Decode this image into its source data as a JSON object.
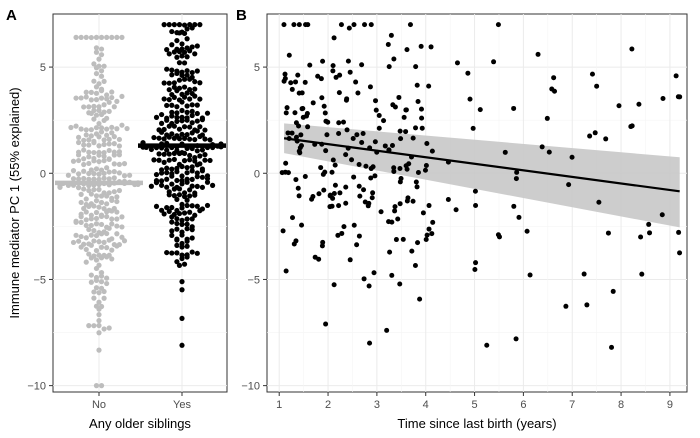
{
  "chart_data": [
    {
      "panel_label": "A",
      "type": "scatter",
      "subtype": "beeswarm",
      "ylabel": "Immune mediator PC 1 (55% explained)",
      "xlabel": "Any older siblings",
      "categories": [
        "No",
        "Yes"
      ],
      "ylim": [
        -10.3,
        7.5
      ],
      "yticks": [
        -10,
        -5,
        0,
        5
      ],
      "ytick_labels": [
        "−10",
        "−5",
        "0",
        "5"
      ],
      "grid": true,
      "series": [
        {
          "name": "No",
          "color": "#bdbdbd",
          "n": 300,
          "mean": -0.45,
          "sd": 3.05,
          "min": -10.0,
          "max": 6.4,
          "median_line": -0.45
        },
        {
          "name": "Yes",
          "color": "#000000",
          "n": 300,
          "mean": 1.3,
          "sd": 2.85,
          "min": -8.1,
          "max": 7.0,
          "median_line": 1.3
        }
      ]
    },
    {
      "panel_label": "B",
      "type": "scatter",
      "xlabel": "Time since last birth (years)",
      "ylabel": "",
      "xlim": [
        0.75,
        9.35
      ],
      "ylim": [
        -10.3,
        7.5
      ],
      "xticks": [
        1,
        2,
        3,
        4,
        5,
        6,
        7,
        8,
        9
      ],
      "xtick_labels": [
        "1",
        "2",
        "3",
        "4",
        "5",
        "6",
        "7",
        "8",
        "9"
      ],
      "yticks": [
        -10,
        -5,
        0,
        5
      ],
      "ytick_labels": [
        "−10",
        "−5",
        "0",
        "5"
      ],
      "grid": true,
      "points": {
        "color": "#000000",
        "n": 280
      },
      "regression": {
        "x": [
          1.1,
          9.2
        ],
        "y": [
          1.65,
          -0.85
        ],
        "ci_lower": [
          0.95,
          -2.55
        ],
        "ci_upper": [
          2.35,
          0.75
        ],
        "line_color": "#000000",
        "band_color": "#c8c8c8"
      },
      "annotated_points": [
        {
          "x": 6.3,
          "y": 5.6
        },
        {
          "x": 4.65,
          "y": 5.2
        },
        {
          "x": 9.2,
          "y": 3.6
        },
        {
          "x": 7.5,
          "y": 4.1
        },
        {
          "x": 8.2,
          "y": 2.2
        },
        {
          "x": 8.4,
          "y": -3.0
        },
        {
          "x": 7.3,
          "y": -6.2
        },
        {
          "x": 5.85,
          "y": -7.8
        },
        {
          "x": 5.25,
          "y": -8.1
        },
        {
          "x": 1.95,
          "y": -7.1
        },
        {
          "x": 2.85,
          "y": -8.0
        },
        {
          "x": 3.2,
          "y": -7.4
        }
      ]
    }
  ]
}
